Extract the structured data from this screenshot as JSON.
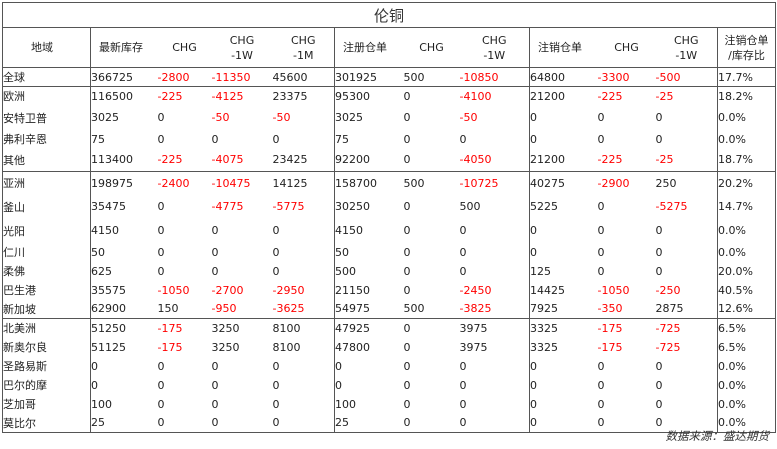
{
  "table": {
    "title": "伦铜",
    "headers": [
      {
        "lines": [
          "地域"
        ]
      },
      {
        "lines": [
          "最新库存"
        ]
      },
      {
        "lines": [
          "CHG"
        ]
      },
      {
        "lines": [
          "CHG",
          "-1W"
        ]
      },
      {
        "lines": [
          "CHG",
          "-1M"
        ]
      },
      {
        "lines": [
          "注册仓单"
        ]
      },
      {
        "lines": [
          "CHG"
        ]
      },
      {
        "lines": [
          "CHG",
          "-1W"
        ]
      },
      {
        "lines": [
          "注销仓单"
        ]
      },
      {
        "lines": [
          "CHG"
        ]
      },
      {
        "lines": [
          "CHG",
          "-1W"
        ]
      },
      {
        "lines": [
          "注销仓单",
          "/库存比"
        ]
      }
    ],
    "rows": [
      {
        "name": "全球",
        "level": "region",
        "values": [
          "366725",
          "-2800",
          "-11350",
          "45600",
          "301925",
          "500",
          "-10850",
          "64800",
          "-3300",
          "-500",
          "17.7%"
        ]
      },
      {
        "name": "欧洲",
        "level": "region",
        "values": [
          "116500",
          "-225",
          "-4125",
          "23375",
          "95300",
          "0",
          "-4100",
          "21200",
          "-225",
          "-25",
          "18.2%"
        ]
      },
      {
        "name": "安特卫普",
        "level": "sub",
        "values": [
          "3025",
          "0",
          "-50",
          "-50",
          "3025",
          "0",
          "-50",
          "0",
          "0",
          "0",
          "0.0%"
        ]
      },
      {
        "name": "弗利辛恩",
        "level": "sub",
        "values": [
          "75",
          "0",
          "0",
          "0",
          "75",
          "0",
          "0",
          "0",
          "0",
          "0",
          "0.0%"
        ]
      },
      {
        "name": "其他",
        "level": "sub",
        "values": [
          "113400",
          "-225",
          "-4075",
          "23425",
          "92200",
          "0",
          "-4050",
          "21200",
          "-225",
          "-25",
          "18.7%"
        ]
      },
      {
        "name": "亚洲",
        "level": "region",
        "values": [
          "198975",
          "-2400",
          "-10475",
          "14125",
          "158700",
          "500",
          "-10725",
          "40275",
          "-2900",
          "250",
          "20.2%"
        ]
      },
      {
        "name": "釜山",
        "level": "sub",
        "values": [
          "35475",
          "0",
          "-4775",
          "-5775",
          "30250",
          "0",
          "500",
          "5225",
          "0",
          "-5275",
          "14.7%"
        ]
      },
      {
        "name": "光阳",
        "level": "sub",
        "values": [
          "4150",
          "0",
          "0",
          "0",
          "4150",
          "0",
          "0",
          "0",
          "0",
          "0",
          "0.0%"
        ]
      },
      {
        "name": "仁川",
        "level": "sub",
        "values": [
          "50",
          "0",
          "0",
          "0",
          "50",
          "0",
          "0",
          "0",
          "0",
          "0",
          "0.0%"
        ]
      },
      {
        "name": "柔佛",
        "level": "sub",
        "values": [
          "625",
          "0",
          "0",
          "0",
          "500",
          "0",
          "0",
          "125",
          "0",
          "0",
          "20.0%"
        ]
      },
      {
        "name": "巴生港",
        "level": "sub",
        "values": [
          "35575",
          "-1050",
          "-2700",
          "-2950",
          "21150",
          "0",
          "-2450",
          "14425",
          "-1050",
          "-250",
          "40.5%"
        ]
      },
      {
        "name": "新加坡",
        "level": "sub",
        "values": [
          "62900",
          "150",
          "-950",
          "-3625",
          "54975",
          "500",
          "-3825",
          "7925",
          "-350",
          "2875",
          "12.6%"
        ]
      },
      {
        "name": "北美洲",
        "level": "region",
        "values": [
          "51250",
          "-175",
          "3250",
          "8100",
          "47925",
          "0",
          "3975",
          "3325",
          "-175",
          "-725",
          "6.5%"
        ]
      },
      {
        "name": "新奥尔良",
        "level": "sub",
        "values": [
          "51125",
          "-175",
          "3250",
          "8100",
          "47800",
          "0",
          "3975",
          "3325",
          "-175",
          "-725",
          "6.5%"
        ]
      },
      {
        "name": "圣路易斯",
        "level": "sub",
        "values": [
          "0",
          "0",
          "0",
          "0",
          "0",
          "0",
          "0",
          "0",
          "0",
          "0",
          "0.0%"
        ]
      },
      {
        "name": "巴尔的摩",
        "level": "sub",
        "values": [
          "0",
          "0",
          "0",
          "0",
          "0",
          "0",
          "0",
          "0",
          "0",
          "0",
          "0.0%"
        ]
      },
      {
        "name": "芝加哥",
        "level": "sub",
        "values": [
          "100",
          "0",
          "0",
          "0",
          "100",
          "0",
          "0",
          "0",
          "0",
          "0",
          "0.0%"
        ]
      },
      {
        "name": "莫比尔",
        "level": "sub",
        "values": [
          "25",
          "0",
          "0",
          "0",
          "25",
          "0",
          "0",
          "0",
          "0",
          "0",
          "0.0%"
        ]
      }
    ]
  },
  "source": "数据来源：盛达期货",
  "colors": {
    "negative": "#ff0000",
    "text": "#222222",
    "rule": "#555555"
  }
}
